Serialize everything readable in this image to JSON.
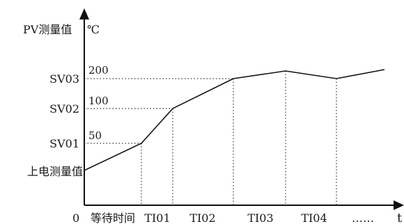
{
  "axes": {
    "y_title": "PV测量值",
    "y_unit": "℃",
    "x_origin": "0",
    "x_var": "t"
  },
  "y_levels": [
    {
      "key": "SV03",
      "label": "SV03",
      "value": "200"
    },
    {
      "key": "SV02",
      "label": "SV02",
      "value": "100"
    },
    {
      "key": "SV01",
      "label": "SV01",
      "value": "50"
    },
    {
      "key": "PV0",
      "label": "上电测量值",
      "value": ""
    }
  ],
  "x_segments": [
    "等待时间",
    "TI01",
    "TI02",
    "TI03",
    "TI04",
    "……"
  ]
}
